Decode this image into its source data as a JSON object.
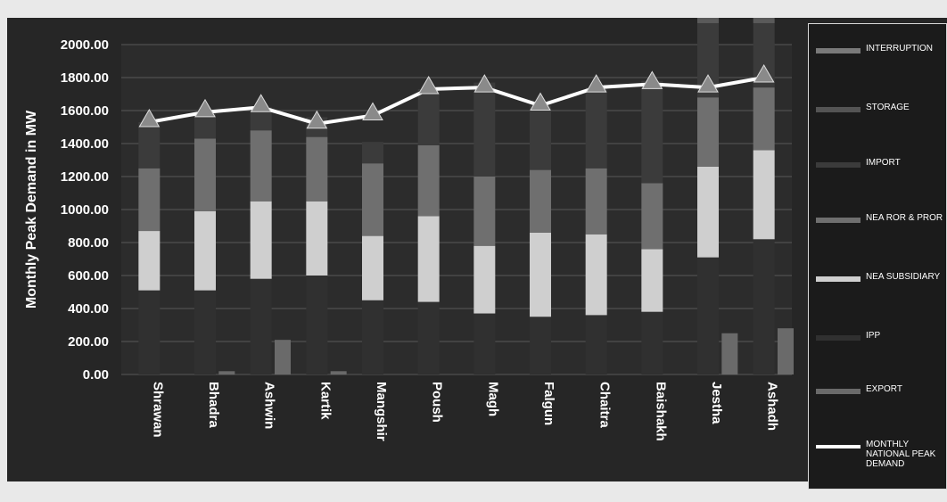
{
  "chart_data": {
    "type": "bar",
    "ylabel": "Monthly Peak Demand in MW",
    "ylim": [
      0,
      2000
    ],
    "yticks": [
      "0.00",
      "200.00",
      "400.00",
      "600.00",
      "800.00",
      "1000.00",
      "1200.00",
      "1400.00",
      "1600.00",
      "1800.00",
      "2000.00"
    ],
    "categories": [
      "Shrawan",
      "Bhadra",
      "Ashwin",
      "Kartik",
      "Mangshir",
      "Poush",
      "Magh",
      "Falgun",
      "Chaitra",
      "Baishakh",
      "Jestha",
      "Ashadh"
    ],
    "series": [
      {
        "name": "EXPORT",
        "values": [
          0,
          20,
          210,
          20,
          0,
          0,
          0,
          0,
          0,
          0,
          250,
          280
        ]
      },
      {
        "name": "IPP",
        "values": [
          510,
          510,
          580,
          600,
          450,
          440,
          370,
          350,
          360,
          380,
          710,
          820
        ]
      },
      {
        "name": "NEA SUBSIDIARY",
        "values": [
          360,
          480,
          470,
          450,
          390,
          520,
          410,
          510,
          490,
          380,
          550,
          540
        ]
      },
      {
        "name": "NEA ROR & PROR",
        "values": [
          380,
          440,
          430,
          390,
          440,
          430,
          420,
          380,
          400,
          400,
          420,
          380
        ]
      },
      {
        "name": "IMPORT",
        "values": [
          280,
          160,
          140,
          120,
          130,
          340,
          570,
          390,
          490,
          620,
          450,
          390
        ]
      },
      {
        "name": "STORAGE",
        "values": [
          0,
          0,
          0,
          0,
          0,
          0,
          0,
          0,
          0,
          0,
          0,
          0
        ]
      },
      {
        "name": "INTERRUPTION",
        "values": [
          0,
          0,
          0,
          0,
          0,
          0,
          0,
          0,
          0,
          0,
          170,
          170
        ]
      }
    ],
    "line": {
      "name": "MONTHLY NATIONAL PEAK DEMAND",
      "values": [
        1530,
        1590,
        1620,
        1520,
        1570,
        1730,
        1740,
        1630,
        1740,
        1760,
        1740,
        1800
      ]
    },
    "colors": {
      "EXPORT": "#6a6a6a",
      "IPP": "#303030",
      "NEA SUBSIDIARY": "#cfcfcf",
      "NEA ROR & PROR": "#6f6f6f",
      "IMPORT": "#3b3b3b",
      "STORAGE": "#545454",
      "INTERRUPTION": "#5a5a5a",
      "line": "#ffffff",
      "marker": "#8a8a8a",
      "plot_bg": "#2c2c2c",
      "grid": "#585858"
    },
    "legend_position": "right"
  },
  "legend": {
    "items": [
      {
        "label": "INTERRUPTION",
        "color": "#7a7a7a",
        "kind": "bar"
      },
      {
        "label": "STORAGE",
        "color": "#545454",
        "kind": "bar"
      },
      {
        "label": "IMPORT",
        "color": "#3b3b3b",
        "kind": "bar"
      },
      {
        "label": "NEA ROR & PROR",
        "color": "#6f6f6f",
        "kind": "bar"
      },
      {
        "label": "NEA SUBSIDIARY",
        "color": "#cfcfcf",
        "kind": "bar"
      },
      {
        "label": "IPP",
        "color": "#303030",
        "kind": "bar"
      },
      {
        "label": "EXPORT",
        "color": "#6a6a6a",
        "kind": "bar"
      },
      {
        "label": "MONTHLY NATIONAL PEAK DEMAND",
        "color": "#ffffff",
        "kind": "line"
      }
    ]
  }
}
